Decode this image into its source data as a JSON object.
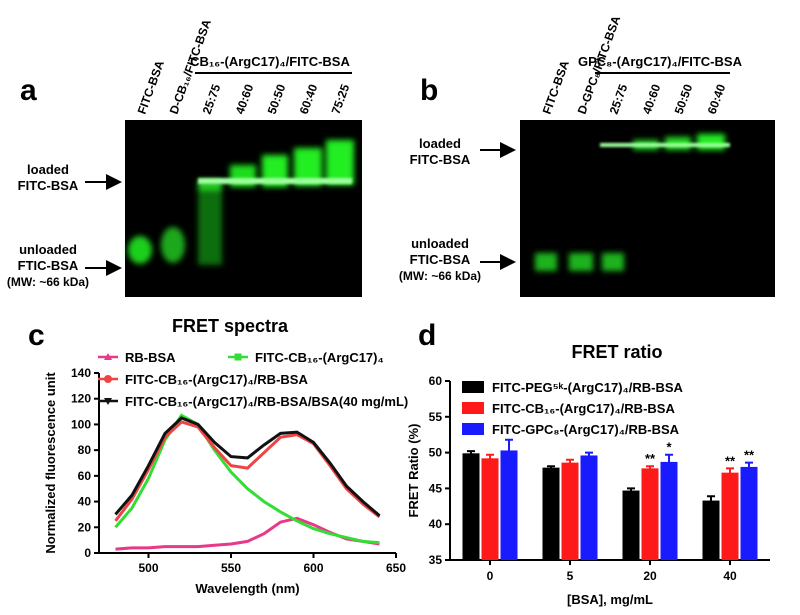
{
  "gel_a": {
    "panel": "a",
    "group_label": "CB₁₆-(ArgC17)₄/FITC-BSA",
    "lanes": [
      "FITC-BSA",
      "D-CB₁₆/FITC-BSA",
      "25:75",
      "40:60",
      "50:50",
      "60:40",
      "75:25"
    ],
    "loaded_label": [
      "loaded",
      "FITC-BSA"
    ],
    "unloaded_label": [
      "unloaded",
      "FTIC-BSA",
      "(MW: ~66 kDa)"
    ]
  },
  "gel_b": {
    "panel": "b",
    "group_label": "GPC₈-(ArgC17)₄/FITC-BSA",
    "lanes": [
      "FITC-BSA",
      "D-GPC₈/FITC-BSA",
      "25:75",
      "40:60",
      "50:50",
      "60:40"
    ],
    "loaded_label": [
      "loaded",
      "FITC-BSA"
    ],
    "unloaded_label": [
      "unloaded",
      "FTIC-BSA",
      "(MW: ~66 kDa)"
    ]
  },
  "chart_data": [
    {
      "type": "line",
      "panel": "c",
      "title": "FRET spectra",
      "x_label": "Wavelength (nm)",
      "y_label": "Normalized fluorescence unit",
      "x": [
        480,
        490,
        500,
        510,
        520,
        530,
        540,
        550,
        560,
        570,
        580,
        590,
        600,
        610,
        620,
        630,
        640
      ],
      "xlim": [
        470,
        650
      ],
      "xticks": [
        500,
        550,
        600,
        650
      ],
      "ylim": [
        0,
        140
      ],
      "yticks": [
        0,
        20,
        40,
        60,
        80,
        100,
        120,
        140
      ],
      "series": [
        {
          "name": "RB-BSA",
          "color": "#e8388a",
          "marker": "triangle",
          "values": [
            3,
            4,
            4,
            5,
            5,
            5,
            6,
            7,
            9,
            15,
            24,
            27,
            22,
            16,
            11,
            9,
            7
          ]
        },
        {
          "name": "FITC-CB₁₆-(ArgC17)₄",
          "color": "#33dd33",
          "marker": "square",
          "values": [
            20,
            35,
            58,
            88,
            107,
            100,
            80,
            63,
            50,
            40,
            32,
            25,
            19,
            15,
            12,
            9,
            8
          ]
        },
        {
          "name": "FITC-CB₁₆-(ArgC17)₄/RB-BSA",
          "color": "#ee4444",
          "marker": "circle",
          "values": [
            25,
            42,
            65,
            90,
            102,
            98,
            82,
            68,
            66,
            78,
            90,
            92,
            85,
            68,
            50,
            38,
            28
          ]
        },
        {
          "name": "FITC-CB₁₆-(ArgC17)₄/RB-BSA/BSA(40 mg/mL)",
          "color": "#111111",
          "marker": "triangle-down",
          "values": [
            30,
            45,
            68,
            93,
            105,
            100,
            86,
            75,
            74,
            84,
            93,
            94,
            86,
            70,
            52,
            40,
            29
          ]
        }
      ]
    },
    {
      "type": "bar",
      "panel": "d",
      "title": "FRET ratio",
      "x_label": "[BSA], mg/mL",
      "y_label": "FRET Ratio (%)",
      "categories": [
        "0",
        "5",
        "20",
        "40"
      ],
      "ylim": [
        35,
        60
      ],
      "yticks": [
        35,
        40,
        45,
        50,
        55,
        60
      ],
      "series": [
        {
          "name": "FITC-PEG⁵ᵏ-(ArgC17)₄/RB-BSA",
          "color": "#000000",
          "values": [
            49.9,
            47.9,
            44.7,
            43.3
          ],
          "errors": [
            0.3,
            0.2,
            0.3,
            0.6
          ],
          "annotations": [
            null,
            null,
            null,
            null
          ]
        },
        {
          "name": "FITC-CB₁₆-(ArgC17)₄/RB-BSA",
          "color": "#ff1a1a",
          "values": [
            49.2,
            48.6,
            47.8,
            47.2
          ],
          "errors": [
            0.5,
            0.4,
            0.3,
            0.6
          ],
          "annotations": [
            null,
            null,
            "**",
            "**"
          ]
        },
        {
          "name": "FITC-GPC₈-(ArgC17)₄/RB-BSA",
          "color": "#1a1aff",
          "values": [
            50.3,
            49.6,
            48.7,
            48.0
          ],
          "errors": [
            1.5,
            0.4,
            1.0,
            0.6
          ],
          "annotations": [
            null,
            null,
            "*",
            "**"
          ]
        }
      ]
    }
  ]
}
